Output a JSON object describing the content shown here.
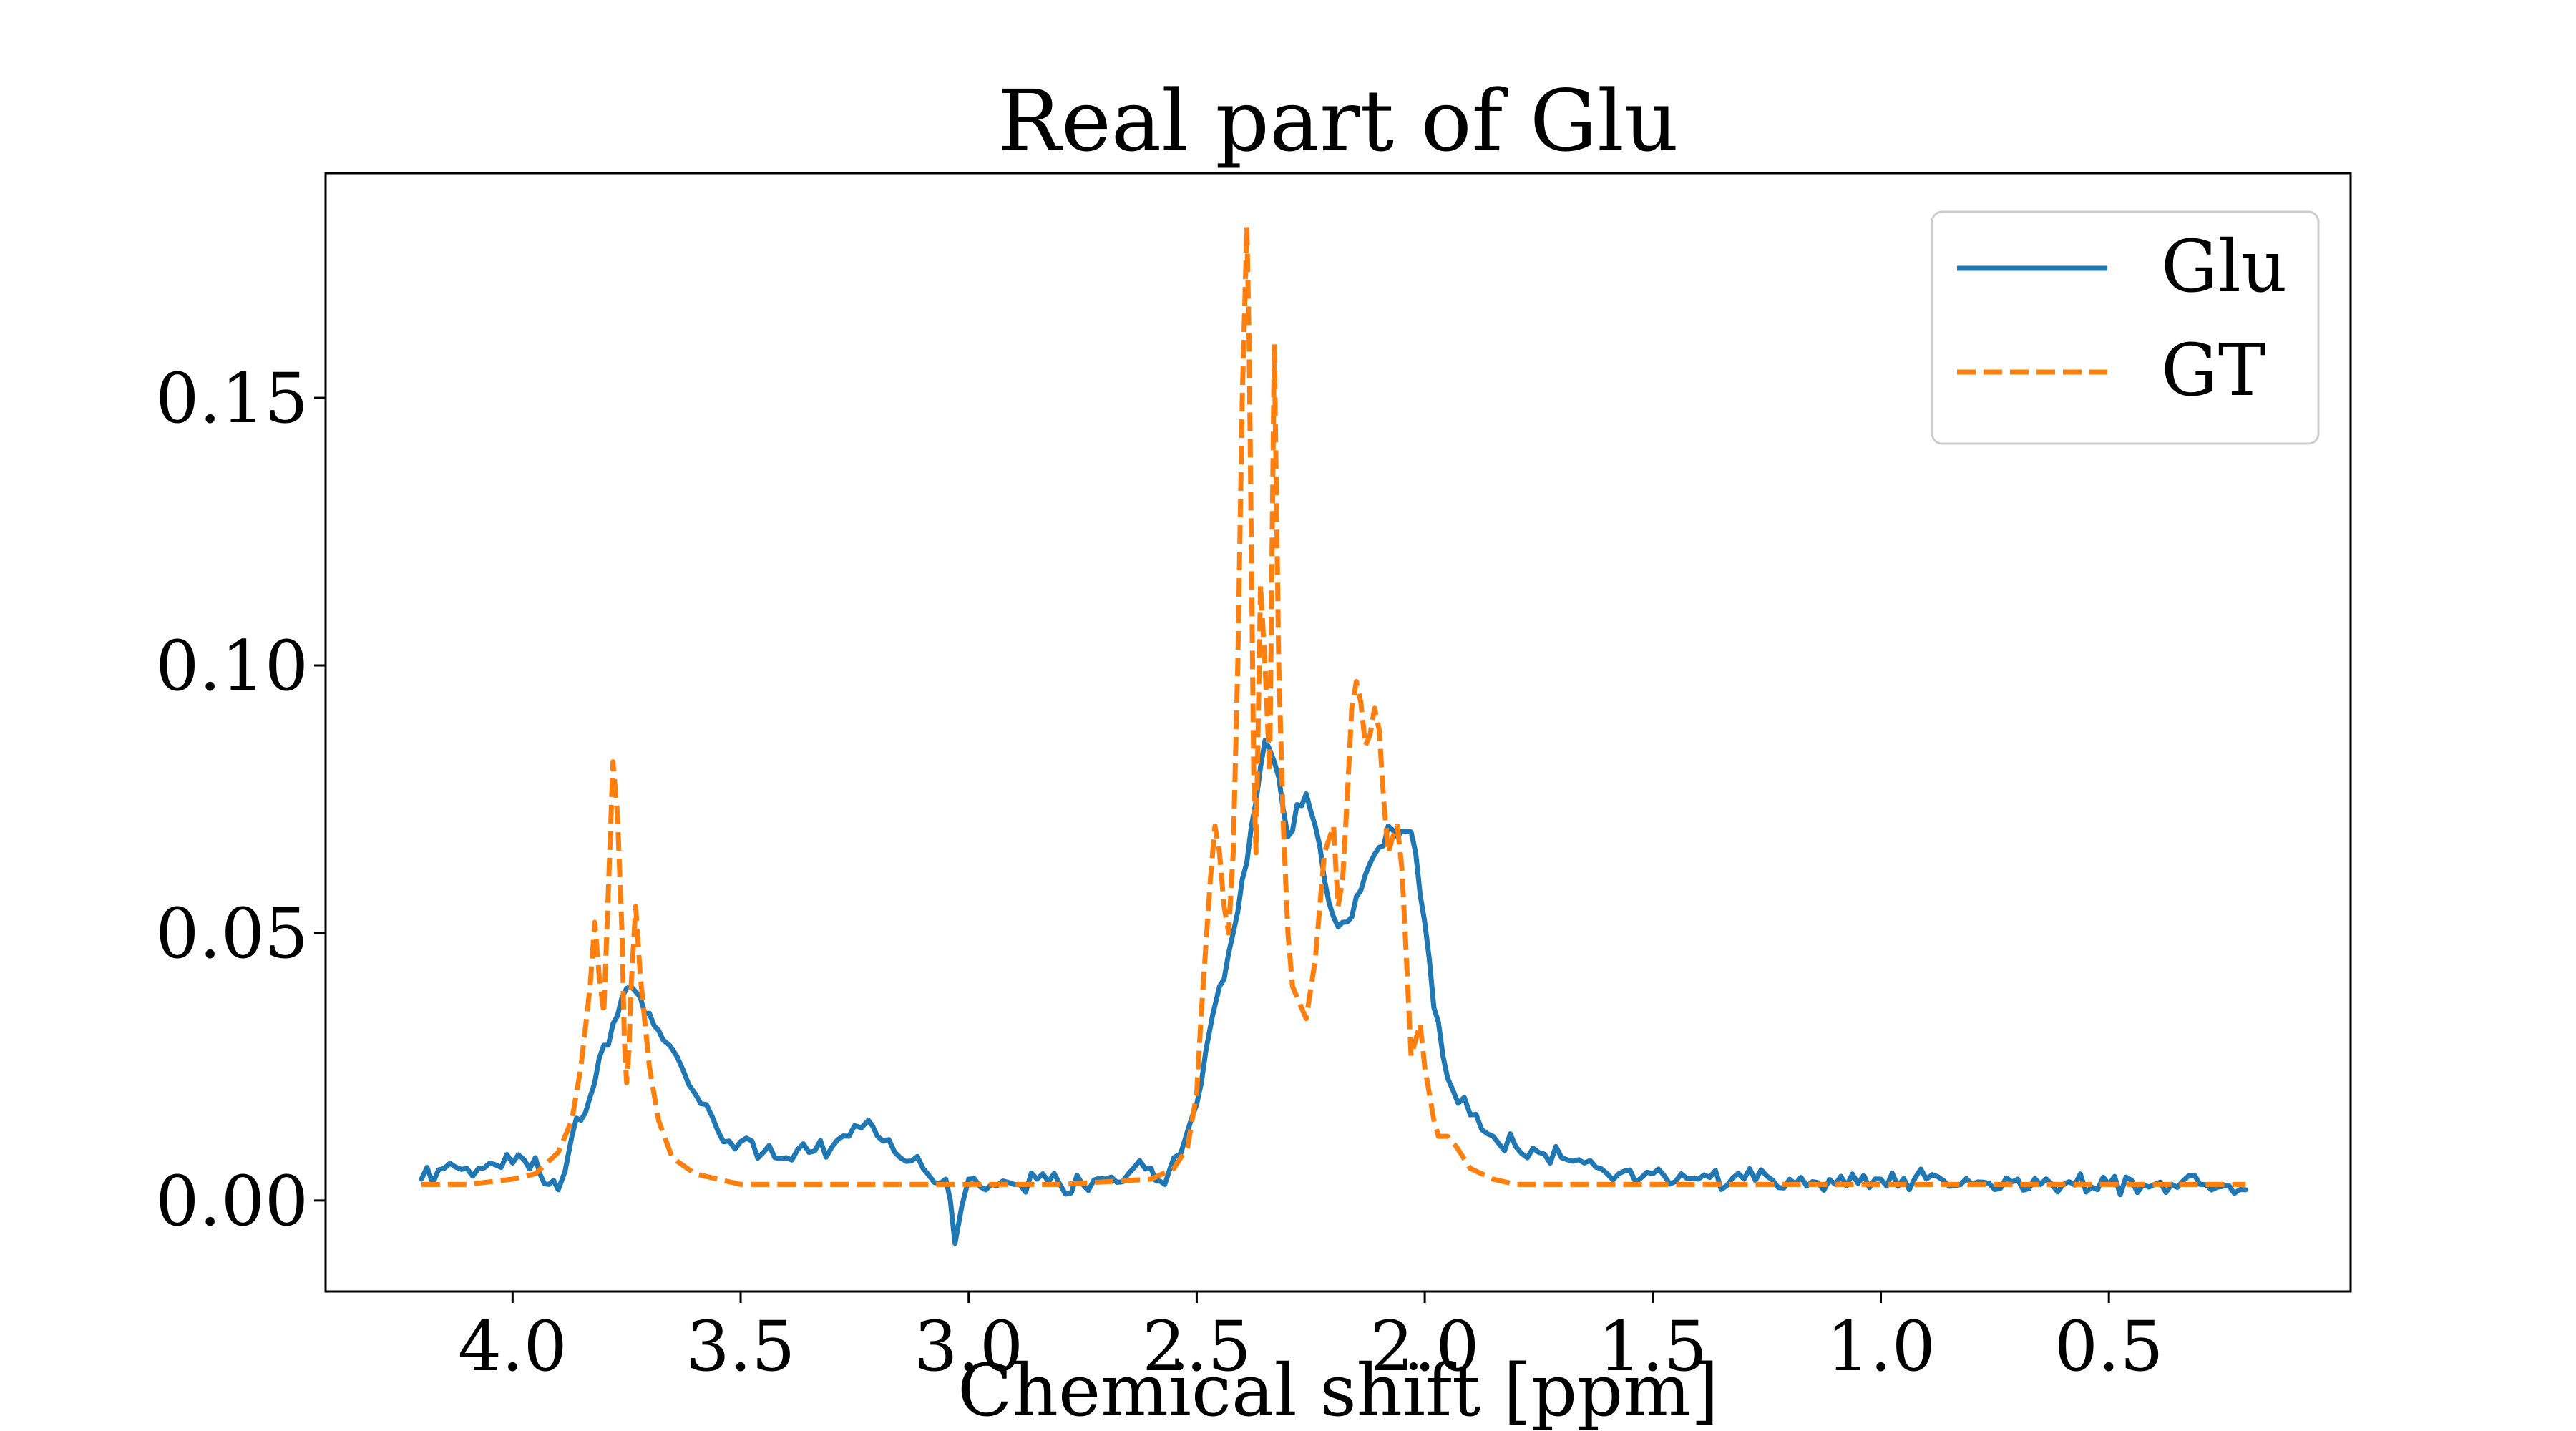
{
  "chart_data": {
    "type": "line",
    "title": "Real part of Glu",
    "xlabel": "Chemical shift [ppm]",
    "ylabel": "",
    "xlim": [
      4.41,
      -0.03
    ],
    "ylim": [
      -0.017,
      0.192
    ],
    "x_axis_inverted": true,
    "x_ticks": [
      4.0,
      3.5,
      3.0,
      2.5,
      2.0,
      1.5,
      1.0,
      0.5
    ],
    "x_tick_labels": [
      "4.0",
      "3.5",
      "3.0",
      "2.5",
      "2.0",
      "1.5",
      "1.0",
      "0.5"
    ],
    "y_ticks": [
      0.0,
      0.05,
      0.1,
      0.15
    ],
    "y_tick_labels": [
      "0.00",
      "0.05",
      "0.10",
      "0.15"
    ],
    "grid": false,
    "legend_position": "top-right",
    "series": [
      {
        "name": "Glu",
        "color": "#1f77b4",
        "dash": "solid",
        "x": [
          4.2,
          4.15,
          4.1,
          4.05,
          4.0,
          3.95,
          3.92,
          3.9,
          3.87,
          3.85,
          3.82,
          3.8,
          3.78,
          3.76,
          3.74,
          3.72,
          3.7,
          3.67,
          3.64,
          3.6,
          3.55,
          3.5,
          3.45,
          3.4,
          3.35,
          3.3,
          3.25,
          3.22,
          3.2,
          3.15,
          3.1,
          3.05,
          3.03,
          3.0,
          2.95,
          2.9,
          2.85,
          2.8,
          2.75,
          2.7,
          2.65,
          2.6,
          2.57,
          2.55,
          2.52,
          2.5,
          2.48,
          2.45,
          2.42,
          2.4,
          2.38,
          2.36,
          2.35,
          2.33,
          2.31,
          2.3,
          2.28,
          2.26,
          2.24,
          2.22,
          2.2,
          2.18,
          2.16,
          2.14,
          2.12,
          2.1,
          2.08,
          2.06,
          2.04,
          2.02,
          2.0,
          1.98,
          1.96,
          1.94,
          1.9,
          1.85,
          1.8,
          1.75,
          1.7,
          1.65,
          1.6,
          1.5,
          1.4,
          1.3,
          1.2,
          1.1,
          1.0,
          0.9,
          0.8,
          0.7,
          0.6,
          0.5,
          0.4,
          0.3,
          0.2
        ],
        "values": [
          0.004,
          0.006,
          0.006,
          0.007,
          0.007,
          0.008,
          0.003,
          0.002,
          0.012,
          0.015,
          0.022,
          0.029,
          0.033,
          0.038,
          0.04,
          0.038,
          0.035,
          0.03,
          0.027,
          0.02,
          0.013,
          0.011,
          0.009,
          0.008,
          0.009,
          0.01,
          0.014,
          0.015,
          0.012,
          0.008,
          0.006,
          0.004,
          -0.008,
          0.004,
          0.003,
          0.003,
          0.004,
          0.003,
          0.003,
          0.004,
          0.005,
          0.006,
          0.003,
          0.008,
          0.013,
          0.018,
          0.028,
          0.04,
          0.05,
          0.06,
          0.07,
          0.081,
          0.086,
          0.082,
          0.073,
          0.068,
          0.074,
          0.076,
          0.07,
          0.06,
          0.053,
          0.052,
          0.053,
          0.058,
          0.063,
          0.066,
          0.07,
          0.068,
          0.069,
          0.065,
          0.052,
          0.036,
          0.027,
          0.021,
          0.016,
          0.012,
          0.01,
          0.009,
          0.008,
          0.007,
          0.005,
          0.005,
          0.004,
          0.004,
          0.004,
          0.003,
          0.004,
          0.004,
          0.003,
          0.004,
          0.003,
          0.003,
          0.003,
          0.003,
          0.002
        ]
      },
      {
        "name": "GT",
        "color": "#ff7f0e",
        "dash": "dashed",
        "x": [
          4.2,
          4.1,
          4.0,
          3.95,
          3.9,
          3.87,
          3.85,
          3.83,
          3.82,
          3.81,
          3.8,
          3.79,
          3.78,
          3.77,
          3.76,
          3.755,
          3.75,
          3.745,
          3.74,
          3.73,
          3.72,
          3.7,
          3.68,
          3.65,
          3.6,
          3.5,
          3.4,
          3.2,
          3.0,
          2.8,
          2.6,
          2.55,
          2.52,
          2.5,
          2.49,
          2.47,
          2.46,
          2.45,
          2.44,
          2.43,
          2.42,
          2.41,
          2.4,
          2.39,
          2.385,
          2.38,
          2.375,
          2.37,
          2.365,
          2.36,
          2.35,
          2.34,
          2.335,
          2.33,
          2.325,
          2.32,
          2.31,
          2.3,
          2.29,
          2.28,
          2.26,
          2.24,
          2.22,
          2.2,
          2.19,
          2.18,
          2.17,
          2.16,
          2.15,
          2.14,
          2.13,
          2.12,
          2.11,
          2.1,
          2.09,
          2.08,
          2.07,
          2.06,
          2.05,
          2.04,
          2.03,
          2.02,
          2.01,
          2.0,
          1.99,
          1.98,
          1.97,
          1.95,
          1.93,
          1.9,
          1.85,
          1.8,
          1.7,
          1.5,
          1.0,
          0.5,
          0.2
        ],
        "values": [
          0.003,
          0.003,
          0.004,
          0.005,
          0.009,
          0.015,
          0.025,
          0.04,
          0.052,
          0.042,
          0.035,
          0.058,
          0.082,
          0.072,
          0.05,
          0.03,
          0.022,
          0.028,
          0.04,
          0.055,
          0.042,
          0.025,
          0.015,
          0.008,
          0.005,
          0.003,
          0.003,
          0.003,
          0.003,
          0.003,
          0.004,
          0.006,
          0.01,
          0.02,
          0.035,
          0.06,
          0.07,
          0.065,
          0.055,
          0.05,
          0.065,
          0.1,
          0.15,
          0.182,
          0.16,
          0.12,
          0.08,
          0.065,
          0.09,
          0.115,
          0.1,
          0.08,
          0.12,
          0.16,
          0.13,
          0.1,
          0.07,
          0.05,
          0.04,
          0.038,
          0.034,
          0.045,
          0.065,
          0.07,
          0.055,
          0.06,
          0.075,
          0.092,
          0.097,
          0.093,
          0.085,
          0.087,
          0.092,
          0.088,
          0.075,
          0.065,
          0.068,
          0.07,
          0.062,
          0.045,
          0.027,
          0.03,
          0.033,
          0.025,
          0.02,
          0.015,
          0.012,
          0.012,
          0.01,
          0.006,
          0.004,
          0.003,
          0.003,
          0.003,
          0.003,
          0.003,
          0.003
        ]
      }
    ]
  }
}
